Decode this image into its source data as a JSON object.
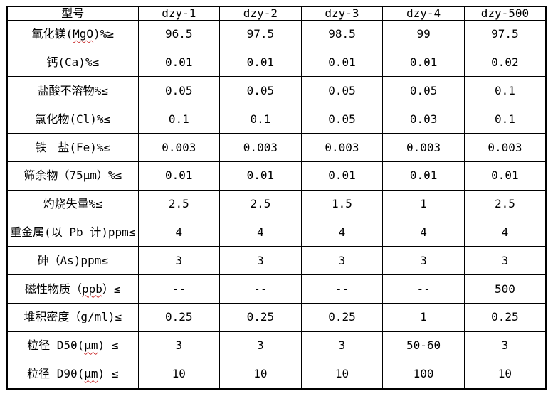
{
  "colors": {
    "background": "#ffffff",
    "border": "#000000",
    "text": "#000000",
    "spellcheck_squiggle": "#cc3333"
  },
  "table": {
    "headers": [
      "型号",
      "dzy-1",
      "dzy-2",
      "dzy-3",
      "dzy-4",
      "dzy-500"
    ],
    "rows": [
      {
        "pre": "氧化镁(",
        "mark": "MgO",
        "post": ")%≥",
        "values": [
          "96.5",
          "97.5",
          "98.5",
          "99",
          "97.5"
        ]
      },
      {
        "pre": "钙(Ca)%≤",
        "mark": "",
        "post": "",
        "values": [
          "0.01",
          "0.01",
          "0.01",
          "0.01",
          "0.02"
        ]
      },
      {
        "pre": "盐酸不溶物%≤",
        "mark": "",
        "post": "",
        "values": [
          "0.05",
          "0.05",
          "0.05",
          "0.05",
          "0.1"
        ]
      },
      {
        "pre": "氯化物(Cl)%≤",
        "mark": "",
        "post": "",
        "values": [
          "0.1",
          "0.1",
          "0.05",
          "0.03",
          "0.1"
        ]
      },
      {
        "pre": "铁　盐(Fe)%≤",
        "mark": "",
        "post": "",
        "values": [
          "0.003",
          "0.003",
          "0.003",
          "0.003",
          "0.003"
        ]
      },
      {
        "pre": "筛余物（75μm）%≤",
        "mark": "",
        "post": "",
        "values": [
          "0.01",
          "0.01",
          "0.01",
          "0.01",
          "0.01"
        ]
      },
      {
        "pre": "灼烧失量%≤",
        "mark": "",
        "post": "",
        "values": [
          "2.5",
          "2.5",
          "1.5",
          "1",
          "2.5"
        ]
      },
      {
        "pre": "重金属(以 Pb 计)ppm≤",
        "mark": "",
        "post": "",
        "values": [
          "4",
          "4",
          "4",
          "4",
          "4"
        ]
      },
      {
        "pre": "砷（As)ppm≤",
        "mark": "",
        "post": "",
        "values": [
          "3",
          "3",
          "3",
          "3",
          "3"
        ]
      },
      {
        "pre": "磁性物质（",
        "mark": "ppb",
        "post": "）≤",
        "values": [
          "--",
          "--",
          "--",
          "--",
          "500"
        ]
      },
      {
        "pre": "堆积密度（g/ml)≤",
        "mark": "",
        "post": "",
        "values": [
          "0.25",
          "0.25",
          "0.25",
          "1",
          "0.25"
        ]
      },
      {
        "pre": "粒径 D50(",
        "mark": "μm",
        "post": ") ≤",
        "values": [
          "3",
          "3",
          "3",
          "50-60",
          "3"
        ]
      },
      {
        "pre": "粒径 D90(",
        "mark": "μm",
        "post": ") ≤",
        "values": [
          "10",
          "10",
          "10",
          "100",
          "10"
        ]
      }
    ]
  }
}
